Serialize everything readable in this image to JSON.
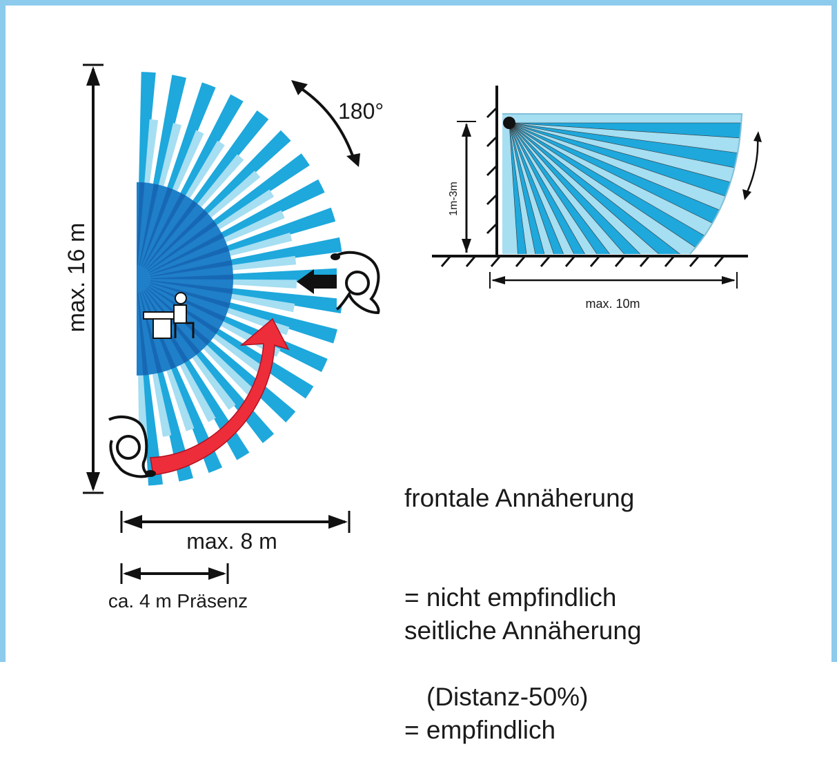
{
  "colors": {
    "frame": "#8ccbec",
    "beam_dark": "#1ea8dc",
    "beam_light": "#a6def2",
    "core": "#1f7fc8",
    "arrow_red": "#ee2d3a",
    "line": "#111111"
  },
  "top_view": {
    "height_label": "max.  16 m",
    "angle_label": "180°",
    "width_label": "max. 8 m",
    "presence_label": "ca. 4 m Präsenz"
  },
  "side_view": {
    "height_label": "1m-3m",
    "range_label": "max. 10m"
  },
  "notes": {
    "frontal_line1": "frontale Annäherung",
    "frontal_line2": "= nicht empfindlich",
    "frontal_line3": "(Distanz-50%)",
    "lateral_line1": "seitliche Annäherung",
    "lateral_line2": "= empfindlich"
  }
}
